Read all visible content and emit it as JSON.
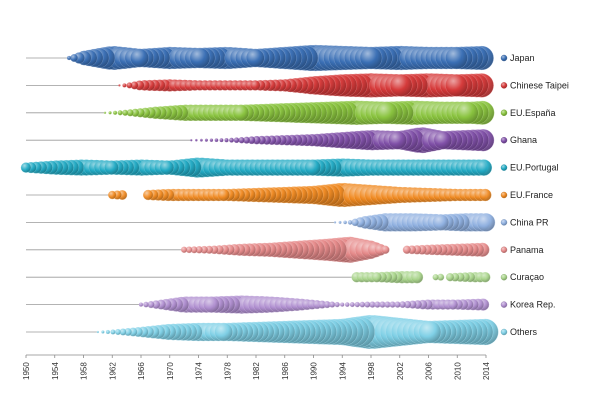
{
  "chart_data": {
    "type": "scatter",
    "title": "",
    "xlabel": "",
    "ylabel": "",
    "xlim": [
      1950,
      2014
    ],
    "x_ticks": [
      "1950",
      "1954",
      "1958",
      "1962",
      "1966",
      "1970",
      "1974",
      "1978",
      "1982",
      "1986",
      "1990",
      "1994",
      "1998",
      "2002",
      "2006",
      "2010",
      "2014"
    ],
    "grid": false,
    "legend_position": "right",
    "series": [
      {
        "name": "Japan",
        "color": "#3a6fb5",
        "active": [
          [
            1956,
            2014
          ]
        ],
        "profile": [
          [
            1956,
            2
          ],
          [
            1958,
            7
          ],
          [
            1962,
            12
          ],
          [
            1966,
            9
          ],
          [
            1970,
            11
          ],
          [
            1974,
            10
          ],
          [
            1978,
            11
          ],
          [
            1982,
            9
          ],
          [
            1986,
            11
          ],
          [
            1990,
            13
          ],
          [
            1994,
            12
          ],
          [
            1998,
            11
          ],
          [
            2002,
            12
          ],
          [
            2006,
            11
          ],
          [
            2010,
            11
          ],
          [
            2014,
            12
          ]
        ]
      },
      {
        "name": "Chinese Taipei",
        "color": "#d63a3a",
        "active": [
          [
            1963,
            2014
          ]
        ],
        "profile": [
          [
            1963,
            1
          ],
          [
            1966,
            5
          ],
          [
            1970,
            6
          ],
          [
            1974,
            5
          ],
          [
            1978,
            5
          ],
          [
            1982,
            5
          ],
          [
            1986,
            6
          ],
          [
            1990,
            9
          ],
          [
            1994,
            11
          ],
          [
            1998,
            12
          ],
          [
            2002,
            11
          ],
          [
            2006,
            12
          ],
          [
            2010,
            11
          ],
          [
            2014,
            12
          ]
        ]
      },
      {
        "name": "EU.España",
        "color": "#8ac43f",
        "active": [
          [
            1961,
            2014
          ]
        ],
        "profile": [
          [
            1961,
            1
          ],
          [
            1964,
            3
          ],
          [
            1968,
            6
          ],
          [
            1972,
            8
          ],
          [
            1976,
            8
          ],
          [
            1980,
            8
          ],
          [
            1984,
            9
          ],
          [
            1988,
            10
          ],
          [
            1992,
            11
          ],
          [
            1996,
            12
          ],
          [
            2000,
            11
          ],
          [
            2004,
            12
          ],
          [
            2008,
            11
          ],
          [
            2012,
            11
          ],
          [
            2014,
            12
          ]
        ]
      },
      {
        "name": "Ghana",
        "color": "#8050a8",
        "active": [
          [
            1973,
            2014
          ]
        ],
        "profile": [
          [
            1973,
            1
          ],
          [
            1978,
            2
          ],
          [
            1982,
            4
          ],
          [
            1986,
            5
          ],
          [
            1990,
            6
          ],
          [
            1994,
            8
          ],
          [
            1998,
            10
          ],
          [
            2002,
            9
          ],
          [
            2005,
            13
          ],
          [
            2008,
            9
          ],
          [
            2011,
            10
          ],
          [
            2014,
            11
          ]
        ]
      },
      {
        "name": "EU.Portugal",
        "color": "#22aac4",
        "active": [
          [
            1950,
            2014
          ]
        ],
        "profile": [
          [
            1950,
            5
          ],
          [
            1954,
            7
          ],
          [
            1958,
            8
          ],
          [
            1962,
            7
          ],
          [
            1966,
            8
          ],
          [
            1970,
            7
          ],
          [
            1974,
            10
          ],
          [
            1978,
            8
          ],
          [
            1982,
            8
          ],
          [
            1986,
            8
          ],
          [
            1990,
            8
          ],
          [
            1994,
            9
          ],
          [
            1998,
            8
          ],
          [
            2002,
            8
          ],
          [
            2006,
            8
          ],
          [
            2010,
            8
          ],
          [
            2014,
            8
          ]
        ]
      },
      {
        "name": "EU.France",
        "color": "#f08a22",
        "active": [
          [
            1962,
            1964
          ],
          [
            1967,
            2014
          ]
        ],
        "profile": [
          [
            1962,
            4
          ],
          [
            1964,
            5
          ],
          [
            1967,
            5
          ],
          [
            1970,
            6
          ],
          [
            1974,
            6
          ],
          [
            1978,
            6
          ],
          [
            1982,
            7
          ],
          [
            1986,
            8
          ],
          [
            1990,
            9
          ],
          [
            1994,
            12
          ],
          [
            1998,
            10
          ],
          [
            2002,
            8
          ],
          [
            2006,
            7
          ],
          [
            2010,
            6
          ],
          [
            2014,
            6
          ]
        ]
      },
      {
        "name": "China PR",
        "color": "#8fb0e0",
        "active": [
          [
            1993,
            2014
          ]
        ],
        "profile": [
          [
            1993,
            1
          ],
          [
            1995,
            2
          ],
          [
            1997,
            6
          ],
          [
            2000,
            9
          ],
          [
            2004,
            9
          ],
          [
            2008,
            8
          ],
          [
            2011,
            9
          ],
          [
            2014,
            9
          ]
        ]
      },
      {
        "name": "Panama",
        "color": "#e68a8a",
        "active": [
          [
            1972,
            2000
          ],
          [
            2003,
            2014
          ]
        ],
        "profile": [
          [
            1972,
            3
          ],
          [
            1976,
            4
          ],
          [
            1980,
            6
          ],
          [
            1984,
            7
          ],
          [
            1988,
            9
          ],
          [
            1992,
            11
          ],
          [
            1995,
            13
          ],
          [
            1998,
            9
          ],
          [
            2000,
            4
          ],
          [
            2003,
            4
          ],
          [
            2006,
            5
          ],
          [
            2010,
            6
          ],
          [
            2014,
            7
          ]
        ]
      },
      {
        "name": "Curaçao",
        "color": "#a8d48a",
        "active": [
          [
            1996,
            2005
          ],
          [
            2007,
            2008
          ],
          [
            2009,
            2014
          ]
        ],
        "profile": [
          [
            1996,
            5
          ],
          [
            1999,
            5
          ],
          [
            2002,
            6
          ],
          [
            2005,
            6
          ],
          [
            2007,
            3
          ],
          [
            2009,
            4
          ],
          [
            2012,
            5
          ],
          [
            2014,
            5
          ]
        ]
      },
      {
        "name": "Korea Rep.",
        "color": "#b08fd0",
        "active": [
          [
            1966,
            2014
          ]
        ],
        "profile": [
          [
            1966,
            2
          ],
          [
            1969,
            5
          ],
          [
            1972,
            8
          ],
          [
            1976,
            8
          ],
          [
            1980,
            9
          ],
          [
            1984,
            8
          ],
          [
            1988,
            6
          ],
          [
            1991,
            4
          ],
          [
            1994,
            2
          ],
          [
            1998,
            3
          ],
          [
            2002,
            3
          ],
          [
            2006,
            5
          ],
          [
            2010,
            5
          ],
          [
            2014,
            6
          ]
        ]
      },
      {
        "name": "Others",
        "color": "#7fd0e6",
        "active": [
          [
            1960,
            2014
          ]
        ],
        "profile": [
          [
            1960,
            1
          ],
          [
            1963,
            3
          ],
          [
            1966,
            5
          ],
          [
            1970,
            8
          ],
          [
            1974,
            9
          ],
          [
            1978,
            9
          ],
          [
            1982,
            10
          ],
          [
            1986,
            11
          ],
          [
            1990,
            12
          ],
          [
            1994,
            13
          ],
          [
            1998,
            17
          ],
          [
            2002,
            14
          ],
          [
            2006,
            11
          ],
          [
            2010,
            12
          ],
          [
            2014,
            13
          ]
        ]
      }
    ]
  }
}
